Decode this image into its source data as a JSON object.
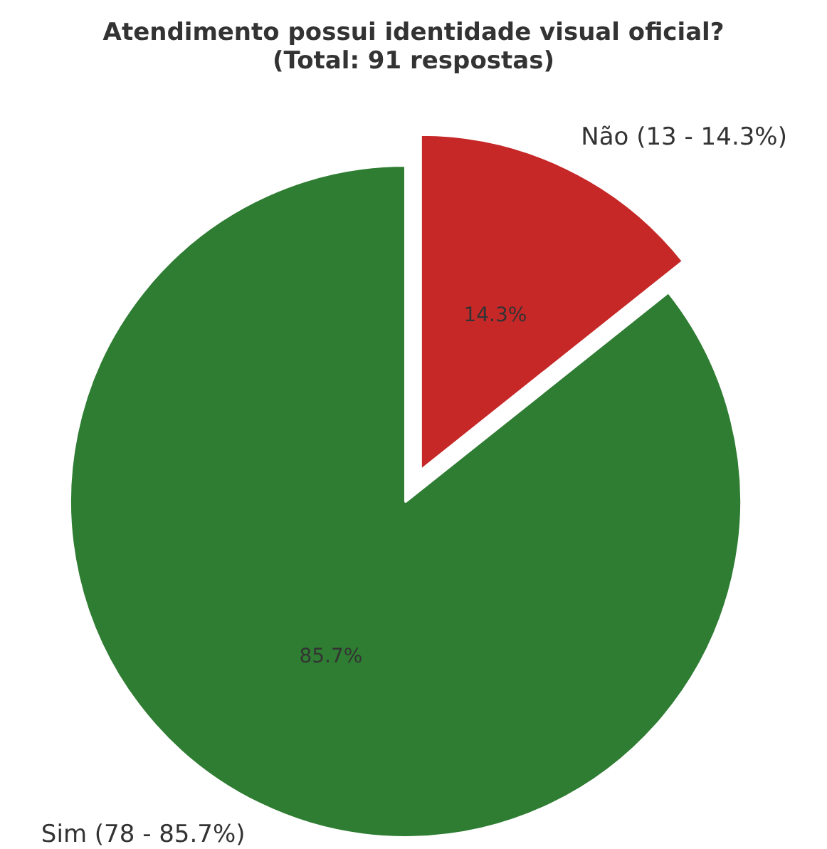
{
  "chart_data": {
    "type": "pie",
    "title": "Atendimento possui identidade visual oficial?\n(Total: 91 respostas)",
    "categories": [
      "Não (13 - 14.3%)",
      "Sim (78 - 85.7%)"
    ],
    "values": [
      14.3,
      85.7
    ],
    "colors": [
      "#c62828",
      "#2e7d32"
    ],
    "value_labels": [
      "14.3%",
      "85.7%"
    ]
  }
}
